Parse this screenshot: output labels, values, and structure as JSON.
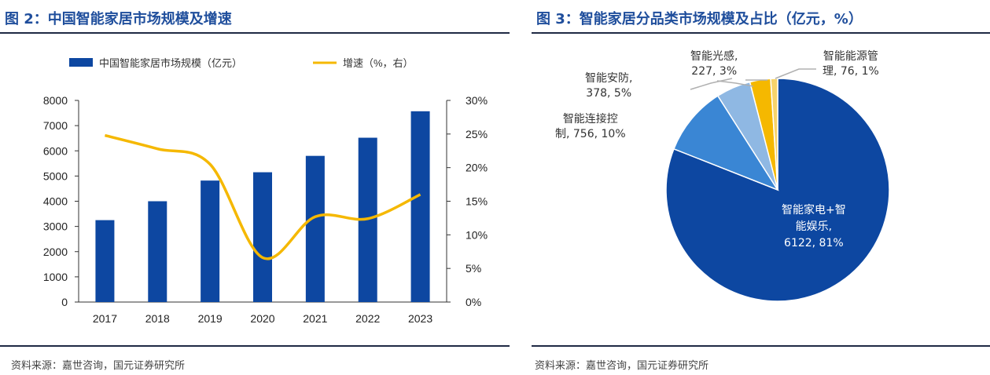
{
  "left": {
    "title": "图 2：中国智能家居市场规模及增速",
    "source": "资料来源：嘉世咨询，国元证券研究所",
    "legend": {
      "bar": "中国智能家居市场规模（亿元）",
      "line": "增速（%，右）"
    }
  },
  "right": {
    "title": "图 3：智能家居分品类市场规模及占比（亿元，%）",
    "source": "资料来源：嘉世咨询，国元证券研究所"
  },
  "colors": {
    "title": "#1f4e9c",
    "bar": "#0d47a1",
    "line": "#f5b800"
  },
  "chart_data": [
    {
      "type": "bar",
      "categories": [
        "2017",
        "2018",
        "2019",
        "2020",
        "2021",
        "2022",
        "2023"
      ],
      "series": [
        {
          "name": "中国智能家居市场规模（亿元）",
          "values": [
            3250,
            4000,
            4820,
            5150,
            5800,
            6520,
            7570
          ],
          "axis": "left",
          "color": "#0d47a1"
        },
        {
          "name": "增速（%，右）",
          "type": "line",
          "values": [
            24.8,
            22.8,
            20.5,
            6.6,
            12.7,
            12.4,
            16.0
          ],
          "axis": "right",
          "color": "#f5b800"
        }
      ],
      "y_left": {
        "lim": [
          0,
          8000
        ],
        "ticks": [
          "0",
          "1000",
          "2000",
          "3000",
          "4000",
          "5000",
          "6000",
          "7000",
          "8000"
        ]
      },
      "y_right": {
        "lim": [
          0,
          30
        ],
        "ticks": [
          "0%",
          "5%",
          "10%",
          "15%",
          "20%",
          "25%",
          "30%"
        ]
      },
      "legend": "top"
    },
    {
      "type": "pie",
      "slices": [
        {
          "label_lines": [
            "智能家电+智",
            "能娱乐,",
            "6122, 81%"
          ],
          "value": 6122,
          "percent": 81,
          "color": "#0d47a1"
        },
        {
          "label_lines": [
            "智能连接控",
            "制, 756, 10%"
          ],
          "value": 756,
          "percent": 10,
          "color": "#3a86d4"
        },
        {
          "label_lines": [
            "智能安防,",
            "378, 5%"
          ],
          "value": 378,
          "percent": 5,
          "color": "#8fb8e3"
        },
        {
          "label_lines": [
            "智能光感,",
            "227, 3%"
          ],
          "value": 227,
          "percent": 3,
          "color": "#f5b800"
        },
        {
          "label_lines": [
            "智能能源管",
            "理, 76, 1%"
          ],
          "value": 76,
          "percent": 1,
          "color": "#f7d36b"
        }
      ]
    }
  ]
}
